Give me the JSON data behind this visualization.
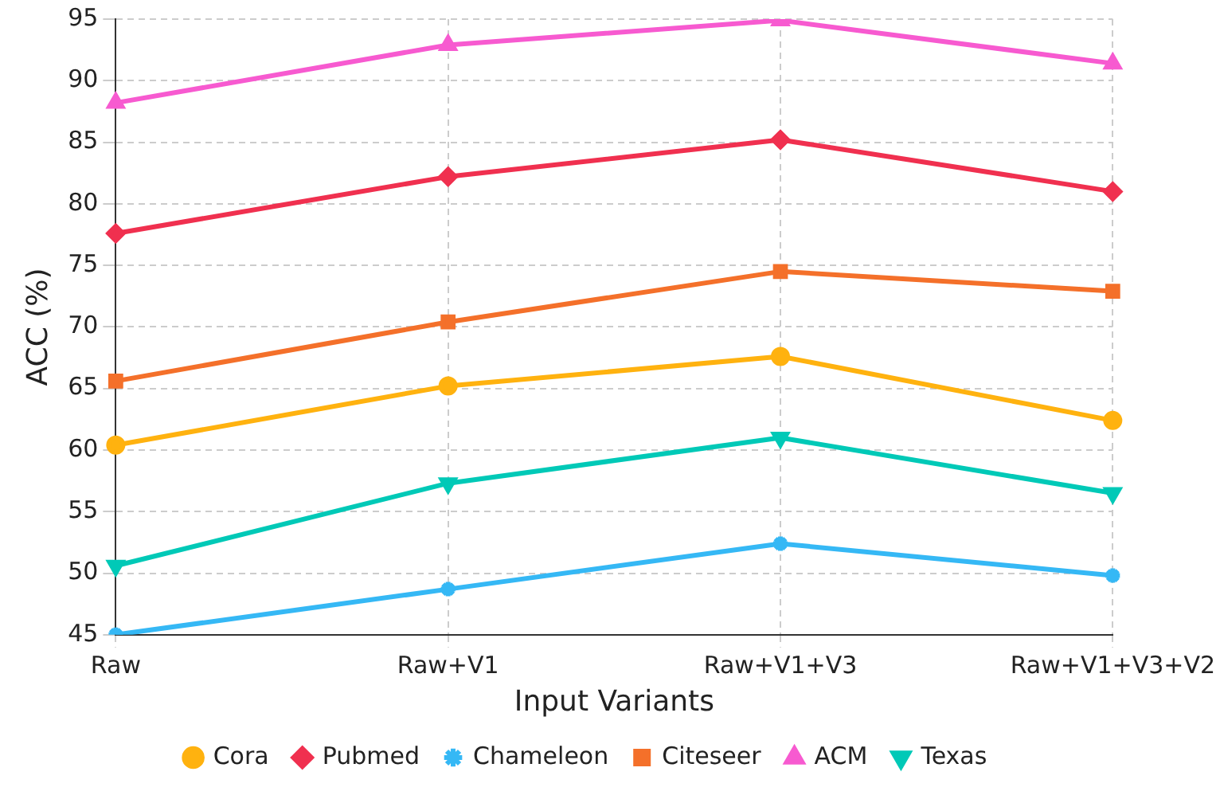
{
  "chart_data": {
    "type": "line",
    "xlabel": "Input Variants",
    "ylabel": "ACC (%)",
    "categories": [
      "Raw",
      "Raw+V1",
      "Raw+V1+V3",
      "Raw+V1+V3+V2"
    ],
    "series": [
      {
        "name": "Cora",
        "color": "#ffb20f",
        "marker": "circle",
        "values": [
          60.4,
          65.2,
          67.6,
          62.4
        ]
      },
      {
        "name": "Citeseer",
        "color": "#f4702a",
        "marker": "square",
        "values": [
          65.6,
          70.4,
          74.5,
          72.9
        ]
      },
      {
        "name": "Pubmed",
        "color": "#f0304f",
        "marker": "diamond",
        "values": [
          77.6,
          82.2,
          85.2,
          81.0
        ]
      },
      {
        "name": "ACM",
        "color": "#f75ad0",
        "marker": "triangle",
        "values": [
          88.2,
          92.9,
          94.9,
          91.4
        ]
      },
      {
        "name": "Chameleon",
        "color": "#35b8f5",
        "marker": "cross",
        "values": [
          45.0,
          48.7,
          52.4,
          49.8
        ]
      },
      {
        "name": "Texas",
        "color": "#00c9b7",
        "marker": "triangle-down",
        "values": [
          50.6,
          57.3,
          61.0,
          56.5
        ]
      }
    ],
    "ylim": [
      45,
      95
    ],
    "yticks": [
      45,
      50,
      55,
      60,
      65,
      70,
      75,
      80,
      85,
      90,
      95
    ],
    "grid": true,
    "legend": "bottom",
    "line_style": "solid"
  }
}
